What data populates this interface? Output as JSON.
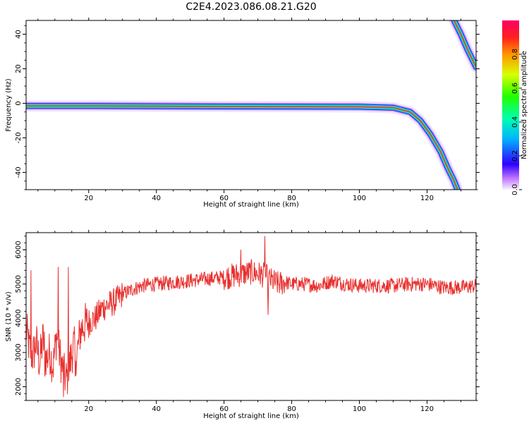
{
  "figure": {
    "title": "C2E4.2023.086.08.21.G20"
  },
  "chart_data": [
    {
      "type": "heatmap",
      "xlabel": "Height of straight line (km)",
      "ylabel": "Frequency (Hz)",
      "xlim": [
        1.5,
        134.5
      ],
      "ylim": [
        -50,
        48
      ],
      "xticks": [
        20,
        40,
        60,
        80,
        100,
        120
      ],
      "yticks": [
        40,
        20,
        0,
        -20,
        -40
      ],
      "colorbar": {
        "label": "Normalized spectral amplitude",
        "range": [
          0,
          1
        ],
        "ticks": [
          "0.0",
          "0.2",
          "0.4",
          "0.6",
          "0.8"
        ],
        "colormap": "gist_rainbow_r"
      },
      "ridge_main": [
        {
          "x": 1.5,
          "y": -1.5
        },
        {
          "x": 20,
          "y": -1.5
        },
        {
          "x": 60,
          "y": -1.8
        },
        {
          "x": 100,
          "y": -2
        },
        {
          "x": 110,
          "y": -2.5
        },
        {
          "x": 115,
          "y": -5
        },
        {
          "x": 118,
          "y": -10
        },
        {
          "x": 121,
          "y": -18
        },
        {
          "x": 124,
          "y": -28
        },
        {
          "x": 126,
          "y": -37
        },
        {
          "x": 128,
          "y": -45
        },
        {
          "x": 129,
          "y": -50
        }
      ],
      "ridge_alias": [
        {
          "x": 128,
          "y": 48
        },
        {
          "x": 130,
          "y": 40
        },
        {
          "x": 132,
          "y": 31
        },
        {
          "x": 134.5,
          "y": 21
        }
      ]
    },
    {
      "type": "line",
      "xlabel": "Height of straight line (km)",
      "ylabel": "SNR (10 * v/v)",
      "xlim": [
        1.5,
        134.5
      ],
      "ylim": [
        1600,
        6500
      ],
      "xticks": [
        20,
        40,
        60,
        80,
        100,
        120
      ],
      "yticks": [
        2000,
        3000,
        4000,
        5000,
        6000
      ],
      "color": "#e8302e",
      "series": [
        {
          "x": [
            1.5,
            2.5,
            3.5,
            4.5,
            5.5,
            6.5,
            7.5,
            8.5,
            9.5,
            10.5,
            11.5,
            12.5,
            13.5,
            14.5,
            15.5,
            16.5,
            17.5,
            18.5,
            20,
            22,
            24,
            26,
            28,
            30,
            33,
            36,
            40,
            45,
            50,
            55,
            60,
            63,
            66,
            68,
            70,
            72,
            74,
            76,
            78,
            80,
            84,
            88,
            92,
            96,
            100,
            105,
            110,
            115,
            120,
            125,
            130,
            134.5
          ],
          "y": [
            3700,
            3100,
            2900,
            3300,
            2700,
            3400,
            2800,
            3000,
            2600,
            3500,
            2900,
            2400,
            2200,
            2700,
            3200,
            2900,
            3600,
            3800,
            3900,
            4000,
            4300,
            4400,
            4500,
            4700,
            4850,
            4950,
            5000,
            5050,
            5100,
            5150,
            5200,
            5250,
            5300,
            5350,
            5300,
            5250,
            5100,
            5000,
            5050,
            5000,
            5000,
            4950,
            5100,
            5000,
            4950,
            4950,
            4950,
            5000,
            5000,
            4900,
            4900,
            4950
          ]
        }
      ]
    }
  ]
}
